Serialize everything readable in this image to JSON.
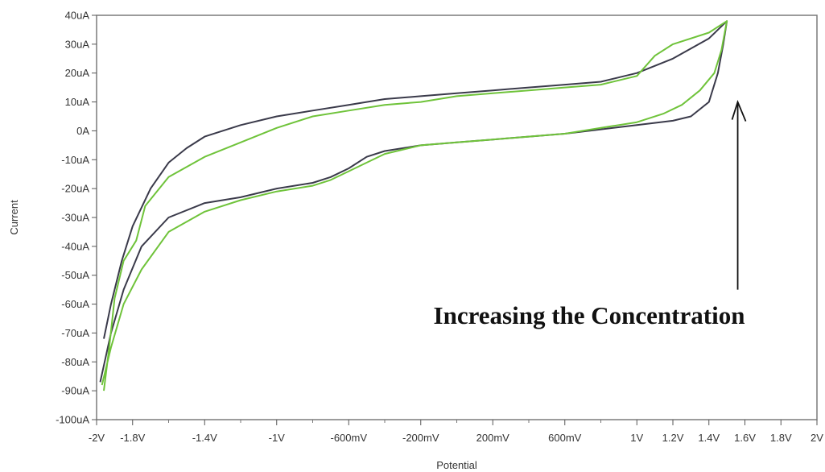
{
  "chart_data": {
    "type": "line",
    "title": "",
    "xlabel": "Potential",
    "ylabel": "Current",
    "xlim": [
      -2.0,
      2.0
    ],
    "ylim": [
      -100,
      40
    ],
    "grid": false,
    "x_unit": "V",
    "y_unit": "uA",
    "x_ticks": [
      {
        "value": -2.0,
        "label": "-2V"
      },
      {
        "value": -1.8,
        "label": "-1.8V"
      },
      {
        "value": -1.4,
        "label": "-1.4V"
      },
      {
        "value": -1.0,
        "label": "-1V"
      },
      {
        "value": -0.6,
        "label": "-600mV"
      },
      {
        "value": -0.2,
        "label": "-200mV"
      },
      {
        "value": 0.2,
        "label": "200mV"
      },
      {
        "value": 0.6,
        "label": "600mV"
      },
      {
        "value": 1.0,
        "label": "1V"
      },
      {
        "value": 1.2,
        "label": "1.2V"
      },
      {
        "value": 1.4,
        "label": "1.4V"
      },
      {
        "value": 1.6,
        "label": "1.6V"
      },
      {
        "value": 1.8,
        "label": "1.8V"
      },
      {
        "value": 2.0,
        "label": "2V"
      }
    ],
    "x_minor_ticks": [
      -1.6,
      -1.2,
      -0.8,
      -0.4,
      0.0,
      0.4,
      0.8
    ],
    "y_ticks": [
      {
        "value": 40,
        "label": "40uA"
      },
      {
        "value": 30,
        "label": "30uA"
      },
      {
        "value": 20,
        "label": "20uA"
      },
      {
        "value": 10,
        "label": "10uA"
      },
      {
        "value": 0,
        "label": "0A"
      },
      {
        "value": -10,
        "label": "-10uA"
      },
      {
        "value": -20,
        "label": "-20uA"
      },
      {
        "value": -30,
        "label": "-30uA"
      },
      {
        "value": -40,
        "label": "-40uA"
      },
      {
        "value": -50,
        "label": "-50uA"
      },
      {
        "value": -60,
        "label": "-60uA"
      },
      {
        "value": -70,
        "label": "-70uA"
      },
      {
        "value": -80,
        "label": "-80uA"
      },
      {
        "value": -90,
        "label": "-90uA"
      },
      {
        "value": -100,
        "label": "-100uA"
      }
    ],
    "series": [
      {
        "color": "#3a3a4a",
        "points": [
          [
            -1.96,
            -72
          ],
          [
            -1.92,
            -60
          ],
          [
            -1.86,
            -45
          ],
          [
            -1.8,
            -33
          ],
          [
            -1.7,
            -20
          ],
          [
            -1.6,
            -11
          ],
          [
            -1.5,
            -6
          ],
          [
            -1.4,
            -2
          ],
          [
            -1.2,
            2
          ],
          [
            -1.0,
            5
          ],
          [
            -0.8,
            7
          ],
          [
            -0.6,
            9
          ],
          [
            -0.4,
            11
          ],
          [
            -0.2,
            12
          ],
          [
            0.0,
            13
          ],
          [
            0.2,
            14
          ],
          [
            0.4,
            15
          ],
          [
            0.6,
            16
          ],
          [
            0.8,
            17
          ],
          [
            1.0,
            20
          ],
          [
            1.2,
            25
          ],
          [
            1.4,
            32
          ],
          [
            1.5,
            38
          ],
          [
            1.48,
            30
          ],
          [
            1.45,
            20
          ],
          [
            1.4,
            10
          ],
          [
            1.3,
            5
          ],
          [
            1.2,
            3.5
          ],
          [
            1.0,
            2
          ],
          [
            0.8,
            0.5
          ],
          [
            0.6,
            -1
          ],
          [
            0.4,
            -2
          ],
          [
            0.2,
            -3
          ],
          [
            0.0,
            -4
          ],
          [
            -0.2,
            -5
          ],
          [
            -0.4,
            -7
          ],
          [
            -0.5,
            -9
          ],
          [
            -0.6,
            -13
          ],
          [
            -0.7,
            -16
          ],
          [
            -0.8,
            -18
          ],
          [
            -1.0,
            -20
          ],
          [
            -1.2,
            -23
          ],
          [
            -1.4,
            -25
          ],
          [
            -1.6,
            -30
          ],
          [
            -1.75,
            -40
          ],
          [
            -1.85,
            -55
          ],
          [
            -1.92,
            -70
          ],
          [
            -1.98,
            -87
          ]
        ]
      },
      {
        "color": "#6fc33a",
        "points": [
          [
            -1.96,
            -90
          ],
          [
            -1.93,
            -75
          ],
          [
            -1.9,
            -58
          ],
          [
            -1.85,
            -45
          ],
          [
            -1.78,
            -38
          ],
          [
            -1.73,
            -26
          ],
          [
            -1.6,
            -16
          ],
          [
            -1.4,
            -9
          ],
          [
            -1.2,
            -4
          ],
          [
            -1.0,
            1
          ],
          [
            -0.8,
            5
          ],
          [
            -0.6,
            7
          ],
          [
            -0.4,
            9
          ],
          [
            -0.2,
            10
          ],
          [
            0.0,
            12
          ],
          [
            0.2,
            13
          ],
          [
            0.4,
            14
          ],
          [
            0.6,
            15
          ],
          [
            0.8,
            16
          ],
          [
            1.0,
            19
          ],
          [
            1.1,
            26
          ],
          [
            1.2,
            30
          ],
          [
            1.4,
            34
          ],
          [
            1.5,
            38
          ],
          [
            1.47,
            28
          ],
          [
            1.43,
            20
          ],
          [
            1.35,
            14
          ],
          [
            1.25,
            9
          ],
          [
            1.15,
            6
          ],
          [
            1.0,
            3
          ],
          [
            0.8,
            1
          ],
          [
            0.6,
            -1
          ],
          [
            0.4,
            -2
          ],
          [
            0.2,
            -3
          ],
          [
            0.0,
            -4
          ],
          [
            -0.2,
            -5
          ],
          [
            -0.4,
            -8
          ],
          [
            -0.5,
            -11
          ],
          [
            -0.6,
            -14
          ],
          [
            -0.7,
            -17
          ],
          [
            -0.8,
            -19
          ],
          [
            -1.0,
            -21
          ],
          [
            -1.2,
            -24
          ],
          [
            -1.4,
            -28
          ],
          [
            -1.6,
            -35
          ],
          [
            -1.75,
            -48
          ],
          [
            -1.85,
            -60
          ],
          [
            -1.92,
            -75
          ],
          [
            -1.97,
            -88
          ]
        ]
      }
    ],
    "annotation": {
      "text": "Increasing the Concentration",
      "arrow_direction": "up",
      "arrow_x": 1.56,
      "arrow_y_from": -55,
      "arrow_y_to": 10
    }
  }
}
